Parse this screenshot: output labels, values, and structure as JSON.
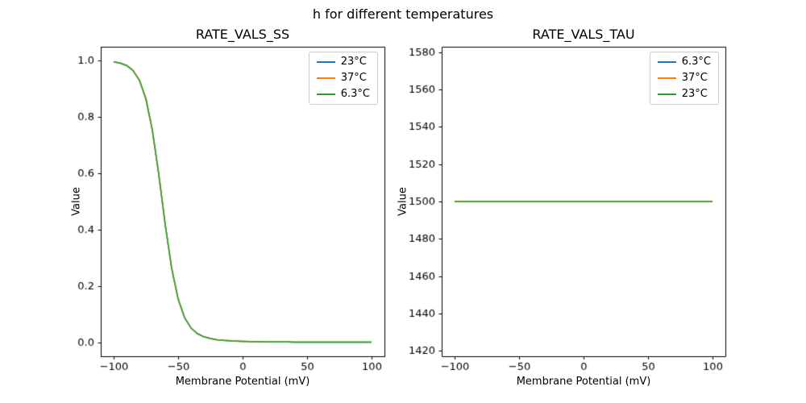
{
  "figure_title": "h for different temperatures",
  "chart_data": [
    {
      "type": "line",
      "title": "RATE_VALS_SS",
      "xlabel": "Membrane Potential (mV)",
      "ylabel": "Value",
      "xlim": [
        -110,
        110
      ],
      "ylim": [
        -0.05,
        1.05
      ],
      "xticks": [
        -100,
        -50,
        0,
        50,
        100
      ],
      "xticklabels": [
        "−100",
        "−50",
        "0",
        "50",
        "100"
      ],
      "yticks": [
        0.0,
        0.2,
        0.4,
        0.6,
        0.8,
        1.0
      ],
      "yticklabels": [
        "0.0",
        "0.2",
        "0.4",
        "0.6",
        "0.8",
        "1.0"
      ],
      "legend_position": "upper right",
      "grid": false,
      "x": [
        -100,
        -95,
        -90,
        -85,
        -80,
        -75,
        -70,
        -65,
        -60,
        -55,
        -50,
        -45,
        -40,
        -35,
        -30,
        -25,
        -20,
        -15,
        -10,
        -5,
        0,
        5,
        10,
        15,
        20,
        25,
        30,
        35,
        40,
        45,
        50,
        55,
        60,
        65,
        70,
        75,
        80,
        85,
        90,
        95,
        100
      ],
      "series": [
        {
          "name": "23°C",
          "color": "#1f77b4",
          "values": [
            0.9963,
            0.9922,
            0.9836,
            0.966,
            0.931,
            0.8652,
            0.7541,
            0.5961,
            0.4182,
            0.2626,
            0.1535,
            0.0874,
            0.0504,
            0.0303,
            0.0192,
            0.0128,
            0.0089,
            0.0065,
            0.0048,
            0.0036,
            0.0028,
            0.0021,
            0.0017,
            0.0013,
            0.001,
            0.0008,
            0.0006,
            0.0005,
            0.0004,
            0.0003,
            0.0002,
            0.0002,
            0.0001,
            0.0001,
            0.0001,
            0.0001,
            0.0,
            0.0,
            0.0,
            0.0,
            0.0
          ]
        },
        {
          "name": "37°C",
          "color": "#ff7f0e",
          "values": [
            0.9963,
            0.9922,
            0.9836,
            0.966,
            0.931,
            0.8652,
            0.7541,
            0.5961,
            0.4182,
            0.2626,
            0.1535,
            0.0874,
            0.0504,
            0.0303,
            0.0192,
            0.0128,
            0.0089,
            0.0065,
            0.0048,
            0.0036,
            0.0028,
            0.0021,
            0.0017,
            0.0013,
            0.001,
            0.0008,
            0.0006,
            0.0005,
            0.0004,
            0.0003,
            0.0002,
            0.0002,
            0.0001,
            0.0001,
            0.0001,
            0.0001,
            0.0,
            0.0,
            0.0,
            0.0,
            0.0
          ]
        },
        {
          "name": "6.3°C",
          "color": "#2ca02c",
          "values": [
            0.9963,
            0.9922,
            0.9836,
            0.966,
            0.931,
            0.8652,
            0.7541,
            0.5961,
            0.4182,
            0.2626,
            0.1535,
            0.0874,
            0.0504,
            0.0303,
            0.0192,
            0.0128,
            0.0089,
            0.0065,
            0.0048,
            0.0036,
            0.0028,
            0.0021,
            0.0017,
            0.0013,
            0.001,
            0.0008,
            0.0006,
            0.0005,
            0.0004,
            0.0003,
            0.0002,
            0.0002,
            0.0001,
            0.0001,
            0.0001,
            0.0001,
            0.0,
            0.0,
            0.0,
            0.0,
            0.0
          ]
        }
      ]
    },
    {
      "type": "line",
      "title": "RATE_VALS_TAU",
      "xlabel": "Membrane Potential (mV)",
      "ylabel": "Value",
      "xlim": [
        -110,
        110
      ],
      "ylim": [
        1417,
        1583
      ],
      "xticks": [
        -100,
        -50,
        0,
        50,
        100
      ],
      "xticklabels": [
        "−100",
        "−50",
        "0",
        "50",
        "100"
      ],
      "yticks": [
        1420,
        1440,
        1460,
        1480,
        1500,
        1520,
        1540,
        1560,
        1580
      ],
      "yticklabels": [
        "1420",
        "1440",
        "1460",
        "1480",
        "1500",
        "1520",
        "1540",
        "1560",
        "1580"
      ],
      "legend_position": "upper right",
      "grid": false,
      "x": [
        -100,
        -95,
        -90,
        -85,
        -80,
        -75,
        -70,
        -65,
        -60,
        -55,
        -50,
        -45,
        -40,
        -35,
        -30,
        -25,
        -20,
        -15,
        -10,
        -5,
        0,
        5,
        10,
        15,
        20,
        25,
        30,
        35,
        40,
        45,
        50,
        55,
        60,
        65,
        70,
        75,
        80,
        85,
        90,
        95,
        100
      ],
      "series": [
        {
          "name": "6.3°C",
          "color": "#1f77b4",
          "values": [
            1500,
            1500,
            1500,
            1500,
            1500,
            1500,
            1500,
            1500,
            1500,
            1500,
            1500,
            1500,
            1500,
            1500,
            1500,
            1500,
            1500,
            1500,
            1500,
            1500,
            1500,
            1500,
            1500,
            1500,
            1500,
            1500,
            1500,
            1500,
            1500,
            1500,
            1500,
            1500,
            1500,
            1500,
            1500,
            1500,
            1500,
            1500,
            1500,
            1500,
            1500
          ]
        },
        {
          "name": "37°C",
          "color": "#ff7f0e",
          "values": [
            1500,
            1500,
            1500,
            1500,
            1500,
            1500,
            1500,
            1500,
            1500,
            1500,
            1500,
            1500,
            1500,
            1500,
            1500,
            1500,
            1500,
            1500,
            1500,
            1500,
            1500,
            1500,
            1500,
            1500,
            1500,
            1500,
            1500,
            1500,
            1500,
            1500,
            1500,
            1500,
            1500,
            1500,
            1500,
            1500,
            1500,
            1500,
            1500,
            1500,
            1500
          ]
        },
        {
          "name": "23°C",
          "color": "#2ca02c",
          "values": [
            1500,
            1500,
            1500,
            1500,
            1500,
            1500,
            1500,
            1500,
            1500,
            1500,
            1500,
            1500,
            1500,
            1500,
            1500,
            1500,
            1500,
            1500,
            1500,
            1500,
            1500,
            1500,
            1500,
            1500,
            1500,
            1500,
            1500,
            1500,
            1500,
            1500,
            1500,
            1500,
            1500,
            1500,
            1500,
            1500,
            1500,
            1500,
            1500,
            1500,
            1500
          ]
        }
      ]
    }
  ]
}
